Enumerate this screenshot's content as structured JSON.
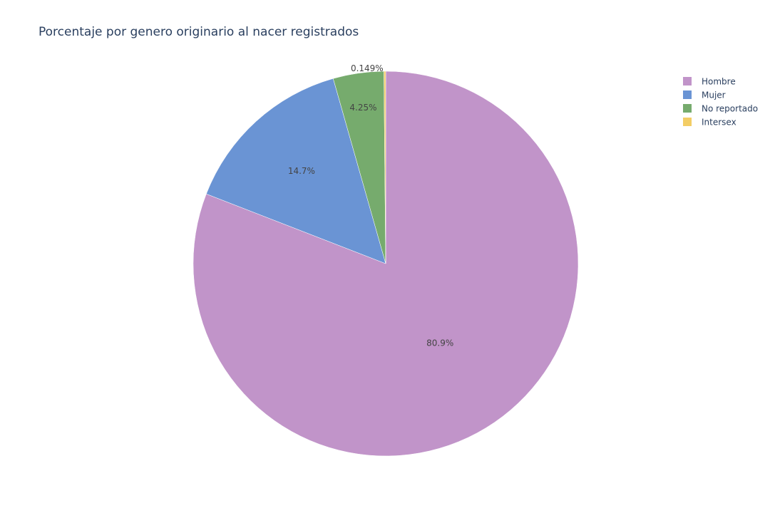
{
  "chart_data": {
    "type": "pie",
    "title": "Porcentaje por genero originario al nacer registrados",
    "slices": [
      {
        "name": "Hombre",
        "value": 80.9,
        "label": "80.9%",
        "color": "#c194c9"
      },
      {
        "name": "Mujer",
        "value": 14.7,
        "label": "14.7%",
        "color": "#6a94d4"
      },
      {
        "name": "No reportado",
        "value": 4.25,
        "label": "4.25%",
        "color": "#76ab6d"
      },
      {
        "name": "Intersex",
        "value": 0.149,
        "label": "0.149%",
        "color": "#f3cd65"
      }
    ],
    "direction": "clockwise",
    "start_angle_deg": 90,
    "legend_position": "top-right"
  }
}
